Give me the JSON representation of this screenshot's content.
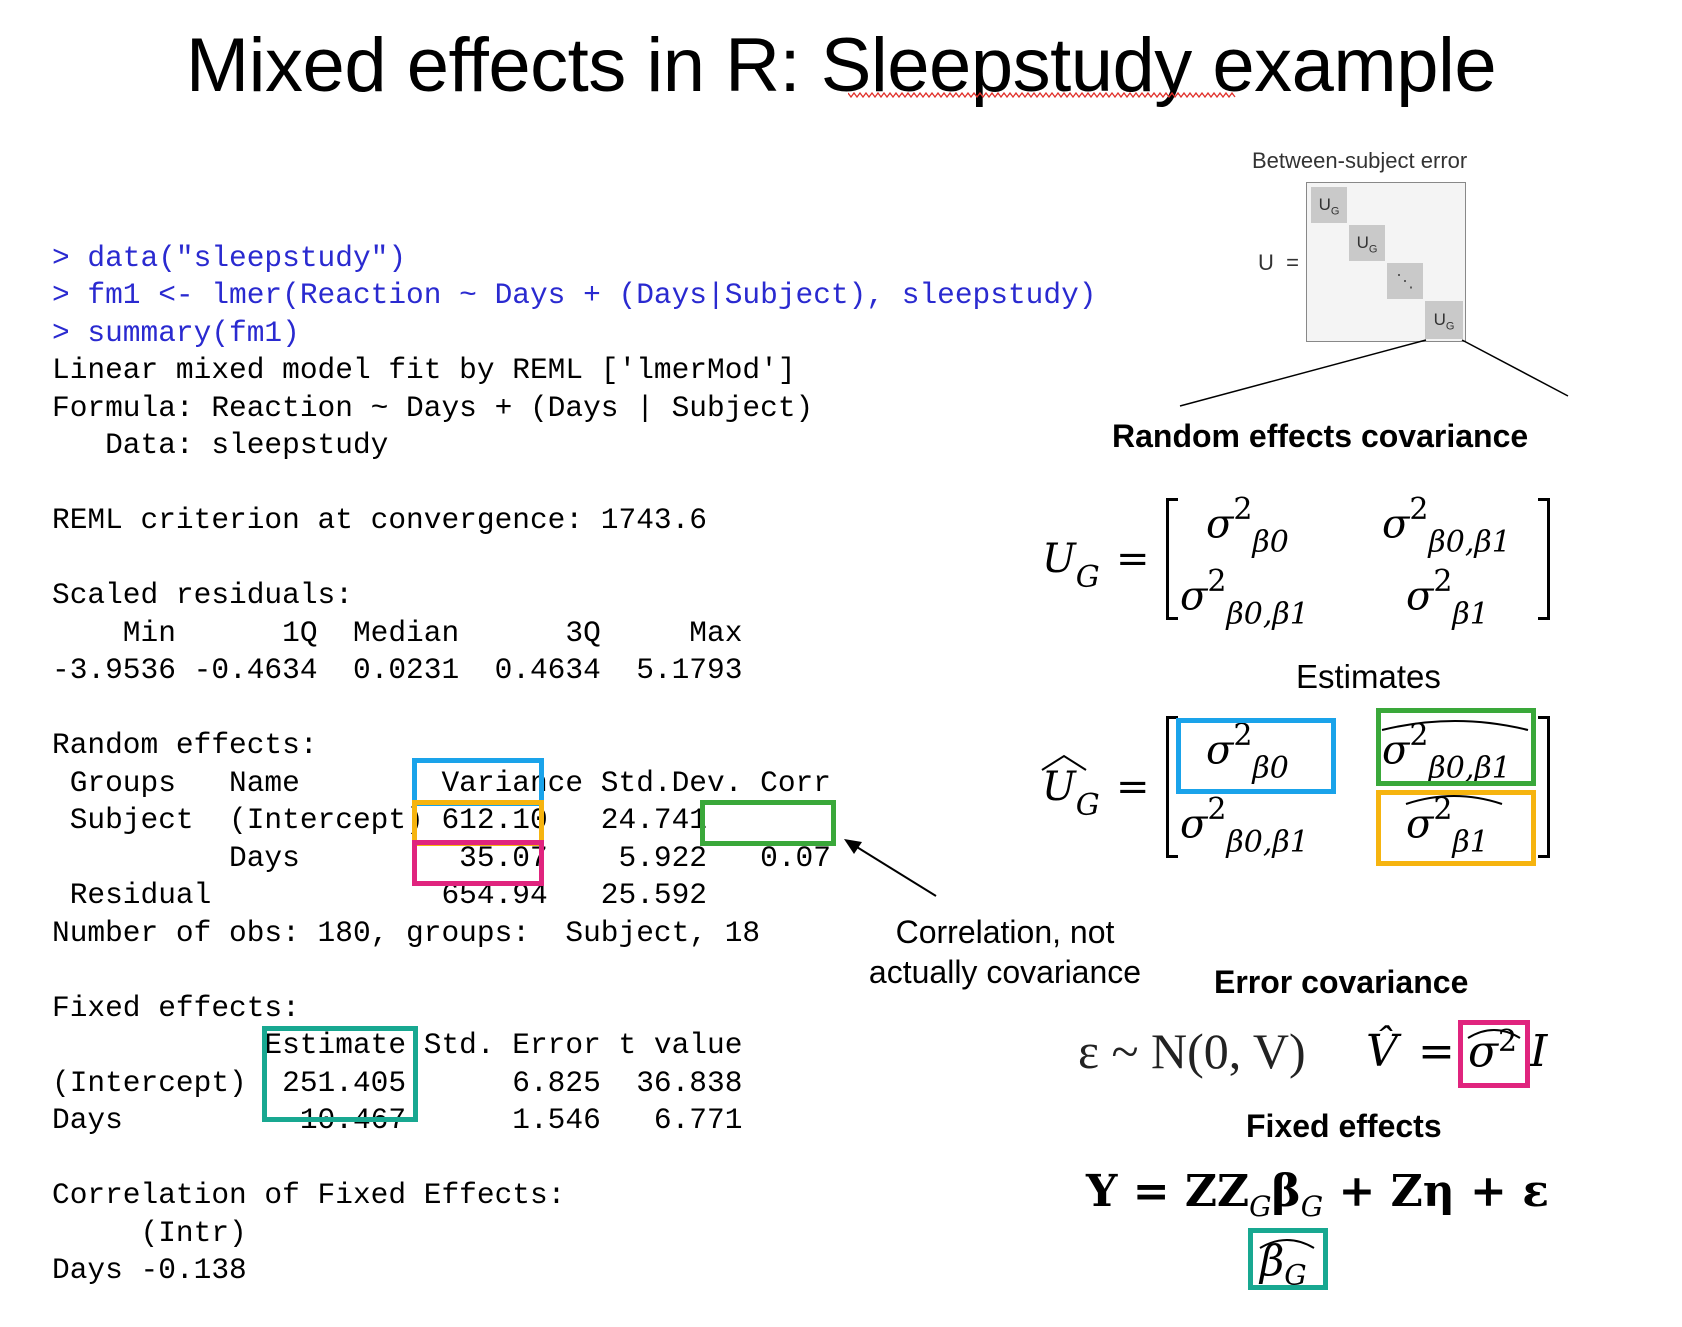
{
  "title": "Mixed effects in R: Sleepstudy example",
  "code": {
    "commands": [
      "> data(\"sleepstudy\")",
      "> fm1 <- lmer(Reaction ~ Days + (Days|Subject), sleepstudy)",
      "> summary(fm1)"
    ],
    "output": [
      "Linear mixed model fit by REML ['lmerMod']",
      "Formula: Reaction ~ Days + (Days | Subject)",
      "   Data: sleepstudy",
      "",
      "REML criterion at convergence: 1743.6",
      "",
      "Scaled residuals:",
      "    Min      1Q  Median      3Q     Max",
      "-3.9536 -0.4634  0.0231  0.4634  5.1793",
      "",
      "Random effects:",
      " Groups   Name        Variance Std.Dev. Corr",
      " Subject  (Intercept) 612.10   24.741",
      "          Days         35.07    5.922   0.07",
      " Residual             654.94   25.592",
      "Number of obs: 180, groups:  Subject, 18",
      "",
      "Fixed effects:",
      "            Estimate Std. Error t value",
      "(Intercept)  251.405      6.825  36.838",
      "Days          10.467      1.546   6.771",
      "",
      "Correlation of Fixed Effects:",
      "     (Intr)",
      "Days -0.138"
    ]
  },
  "annotation": {
    "correlation_note_line1": "Correlation, not",
    "correlation_note_line2": "actually covariance"
  },
  "diagram": {
    "caption": "Between-subject error",
    "u_label": "U",
    "equals": "=",
    "block_label": "U",
    "block_subscript": "G",
    "ellipsis": "⋱"
  },
  "headings": {
    "random_effects_covariance": "Random effects covariance",
    "estimates": "Estimates",
    "error_covariance": "Error covariance",
    "fixed_effects": "Fixed effects"
  },
  "matrix": {
    "lhs": "U",
    "lhs_sub": "G",
    "equals": "=",
    "sigma": "σ",
    "sq": "2",
    "sub_b0": "β0",
    "sub_b01": "β0,β1",
    "sub_b1": "β1"
  },
  "equations": {
    "error_lhs": "ε ~ N(0, V)",
    "vhat": "V̂",
    "equals": "=",
    "sigma2_hat": "σ",
    "sq": "2",
    "identity": "I",
    "fixed": "Y = ZZ",
    "fixed_sub_g": "G",
    "fixed_beta": "β",
    "fixed_rest": " + Zη + ε",
    "beta_hat": "β",
    "beta_hat_sub": "G"
  },
  "colors": {
    "command": "#2a2ad0",
    "blue": "#1aa3ea",
    "orange": "#f6b40f",
    "green": "#3aa83a",
    "pink": "#e0247e",
    "teal": "#18a891"
  }
}
